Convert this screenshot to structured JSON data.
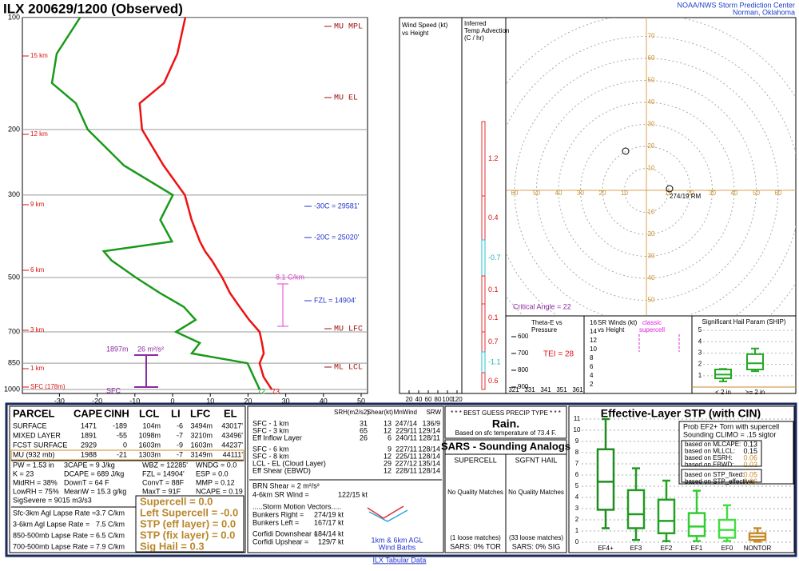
{
  "header": {
    "title": "ILX  200629/1200  (Observed)",
    "agency": "NOAA/NWS Storm Prediction Center",
    "location": "Norman, Oklahoma"
  },
  "skewt": {
    "plim": [
      100,
      1000
    ],
    "pressure_ticks": [
      100,
      200,
      300,
      500,
      700,
      850,
      1000
    ],
    "temperature_ticks": [
      -30,
      -20,
      -10,
      0,
      10,
      20,
      30,
      40,
      50
    ],
    "height_labels": [
      "15 km",
      "12 km",
      "9 km",
      "6 km",
      "3 km",
      "1 km",
      "SFC (178m)"
    ],
    "pressure": [
      1000,
      925,
      850,
      800,
      750,
      700,
      650,
      600,
      550,
      500,
      450,
      425,
      400,
      350,
      300,
      250,
      200,
      170,
      150,
      125,
      100
    ],
    "temperature": [
      26.3,
      21.8,
      18.2,
      17.5,
      15.1,
      12.4,
      7.4,
      2.5,
      -2.7,
      -7.6,
      -13.5,
      -17,
      -20.2,
      -26.4,
      -32.8,
      -43.9,
      -56.3,
      -61.8,
      -59.1,
      -61,
      -65.6
    ],
    "dewpoint": [
      23.1,
      19.2,
      15.0,
      -1.6,
      -1.4,
      -9.8,
      -6.8,
      -12.3,
      -21.3,
      -30.5,
      -40.1,
      -43.9,
      -27.6,
      -34.7,
      -36,
      -54.4,
      -70.7,
      -78.7,
      -88.8,
      -93,
      -93.5
    ],
    "temperature_color": "#ee1111",
    "dewpoint_color": "#1a9a1a",
    "annotations": {
      "mu_mpl": "MU MPL",
      "mu_el": "MU EL",
      "iso30": "-30C = 29581'",
      "iso20": "-20C = 25020'",
      "fzl": "FZL = 14904'",
      "mu_lfc": "MU LFC",
      "ml_lcl": "ML LCL",
      "lapse": "8.1 C/km",
      "esrh_depth": "1897m",
      "esrh": "26 m²/s²",
      "sfc": "SFC",
      "td_sfc": "72",
      "t_sfc": "73"
    }
  },
  "wind_panel": {
    "title": [
      "Wind Speed (kt)",
      "vs Height"
    ],
    "xlim": [
      0,
      120
    ],
    "xticks": [
      20,
      40,
      60,
      80,
      100,
      120
    ]
  },
  "advection": {
    "title": [
      "Inferred",
      "Temp Advection",
      "(C / hr)"
    ],
    "values": [
      1.2,
      0.4,
      -0.7,
      0.1,
      0.1,
      0.7,
      -1.1,
      0.6
    ]
  },
  "hodograph": {
    "ticks": [
      10,
      20,
      30,
      40,
      50,
      60,
      70,
      80
    ],
    "storm_motion": "274/19 RM",
    "critical_angle": "Critical Angle = 22"
  },
  "theta_e": {
    "title": [
      "Theta-E vs",
      "Pressure"
    ],
    "yticks": [
      600,
      700,
      800,
      900
    ],
    "xticks": [
      321,
      331,
      341,
      351,
      361
    ],
    "tei": "TEI = 28"
  },
  "sr_winds": {
    "title": [
      "SR Winds (kt)",
      "vs Height"
    ],
    "yticks": [
      16,
      14,
      12,
      10,
      8,
      6,
      4,
      2
    ],
    "reference": [
      "classic",
      "supercell"
    ]
  },
  "ship": {
    "title": "Significant Hail Param (SHIP)",
    "ylim": [
      0,
      5.5
    ],
    "yticks": [
      1,
      2,
      3,
      4,
      5
    ],
    "categories": [
      "< 2 in",
      ">= 2 in"
    ],
    "boxes": [
      [
        0.5,
        0.77,
        1.1,
        1.55,
        1.6
      ],
      [
        1.4,
        1.55,
        2.1,
        2.9,
        3.4
      ]
    ],
    "color": "#22aa22"
  },
  "parcel_table": {
    "header": [
      "PARCEL",
      "CAPE",
      "CINH",
      "LCL",
      "LI",
      "LFC",
      "EL"
    ],
    "rows": [
      [
        "SURFACE",
        "1471",
        "-189",
        "104m",
        "-6",
        "3494m",
        "43017'"
      ],
      [
        "MIXED LAYER",
        "1891",
        "-55",
        "1098m",
        "-7",
        "3210m",
        "43496'"
      ],
      [
        "FCST SURFACE",
        "2929",
        "0",
        "1603m",
        "-9",
        "1603m",
        "44237'"
      ],
      [
        "MU  (932 mb)",
        "1988",
        "-21",
        "1303m",
        "-7",
        "3149m",
        "44111'"
      ]
    ]
  },
  "indices": [
    [
      "PW = 1.53 in",
      "3CAPE = 9 J/kg",
      "WBZ = 12285'",
      "WNDG = 0.0"
    ],
    [
      "K = 23",
      "DCAPE = 689 J/kg",
      "FZL = 14904'",
      "ESP = 0.0"
    ],
    [
      "MidRH = 38%",
      "DownT = 64 F",
      "ConvT = 88F",
      "MMP = 0.12"
    ],
    [
      "LowRH = 75%",
      "MeanW = 15.3 g/kg",
      "MaxT = 91F",
      "NCAPE = 0.19"
    ]
  ],
  "sig_severe": "SigSevere = 9015 m3/s3",
  "lapse_rates": [
    [
      "Sfc-3km Agl Lapse Rate =",
      "3.7 C/km"
    ],
    [
      "3-6km Agl Lapse Rate =",
      "7.5 C/km"
    ],
    [
      "850-500mb Lapse Rate =",
      "6.5 C/km"
    ],
    [
      "700-500mb Lapse Rate =",
      "7.9 C/km"
    ]
  ],
  "composite": [
    "Supercell = 0.0",
    "Left Supercell = -0.0",
    "STP (eff layer) = 0.0",
    "STP (fix layer) = 0.0",
    "Sig Hail = 0.3"
  ],
  "kinematics": {
    "header": [
      "SRH(m2/s2)",
      "Shear(kt)",
      "MnWind",
      "SRW"
    ],
    "rows": [
      [
        "SFC - 1 km",
        "31",
        "13",
        "247/14",
        "136/9"
      ],
      [
        "SFC - 3 km",
        "65",
        "12",
        "229/11",
        "129/14"
      ],
      [
        "Eff Inflow Layer",
        "26",
        "6",
        "240/11",
        "128/11"
      ],
      [
        "SFC - 6 km",
        null,
        "9",
        "227/11",
        "128/14"
      ],
      [
        "SFC - 8 km",
        null,
        "12",
        "225/11",
        "128/14"
      ],
      [
        "LCL - EL (Cloud Layer)",
        null,
        "29",
        "227/12",
        "135/14"
      ],
      [
        "Eff Shear (EBWD)",
        null,
        "12",
        "228/11",
        "128/14"
      ]
    ],
    "brn": "BRN Shear = 2 m²/s²",
    "sr46": [
      "4-6km SR Wind =",
      "122/15 kt"
    ],
    "motion_title": ".....Storm Motion Vectors.....",
    "motions": [
      [
        "Bunkers Right =",
        "274/19 kt"
      ],
      [
        "Bunkers Left =",
        "167/17 kt"
      ],
      [
        "Corfidi Downshear =",
        "184/14 kt"
      ],
      [
        "Corfidi Upshear =",
        "129/7 kt"
      ]
    ],
    "barb_label": [
      "1km & 6km AGL",
      "Wind Barbs"
    ]
  },
  "precip": {
    "title": "* * * BEST GUESS PRECIP TYPE * * *",
    "type": "Rain.",
    "basis": "Based on sfc temperature of 73.4 F."
  },
  "sars": {
    "title": "SARS - Sounding Analogs",
    "columns": [
      "SUPERCELL",
      "SGFNT HAIL"
    ],
    "matches": [
      "No Quality Matches",
      "No Quality Matches"
    ],
    "loose": [
      "(1 loose matches)",
      "(33 loose matches)"
    ],
    "result": [
      "SARS:  0% TOR",
      "SARS:  0% SIG"
    ]
  },
  "stp": {
    "title": "Effective-Layer STP (with CIN)",
    "ylim": [
      0,
      11
    ],
    "yticks": [
      0,
      1,
      2,
      3,
      4,
      5,
      6,
      7,
      8,
      9,
      10,
      11
    ],
    "categories": [
      "EF4+",
      "EF3",
      "EF2",
      "EF1",
      "EF0",
      "NONTOR"
    ],
    "boxes": [
      [
        1.25,
        2.9,
        5.4,
        8.3,
        11
      ],
      [
        0.2,
        1.25,
        2.5,
        4.65,
        6.6
      ],
      [
        0.1,
        0.8,
        1.9,
        3.8,
        5.5
      ],
      [
        0.1,
        0.55,
        1.4,
        2.6,
        4.6
      ],
      [
        0.1,
        0.4,
        1.1,
        2.0,
        3.3
      ],
      [
        0.05,
        0.2,
        0.5,
        0.8,
        1.25
      ]
    ],
    "colors": [
      "#1e8c1e",
      "#229922",
      "#22a022",
      "#33cc33",
      "#44dd44",
      "#c88a2a"
    ],
    "inset": {
      "title": [
        "Prob EF2+ Torn with supercell",
        "Sounding CLIMO = .15 sigtor"
      ],
      "rows": [
        [
          "based on MLCAPE:",
          "0.13"
        ],
        [
          "based on MLLCL:",
          "0.15"
        ],
        [
          "based on ESRH:",
          "0.06"
        ],
        [
          "based on EBWD:",
          "0.03"
        ],
        [
          "based on STP_fixed:",
          "0.05"
        ],
        [
          "based on STP_effective:",
          "0.06"
        ]
      ]
    }
  },
  "footer": "ILX Tabular Data"
}
